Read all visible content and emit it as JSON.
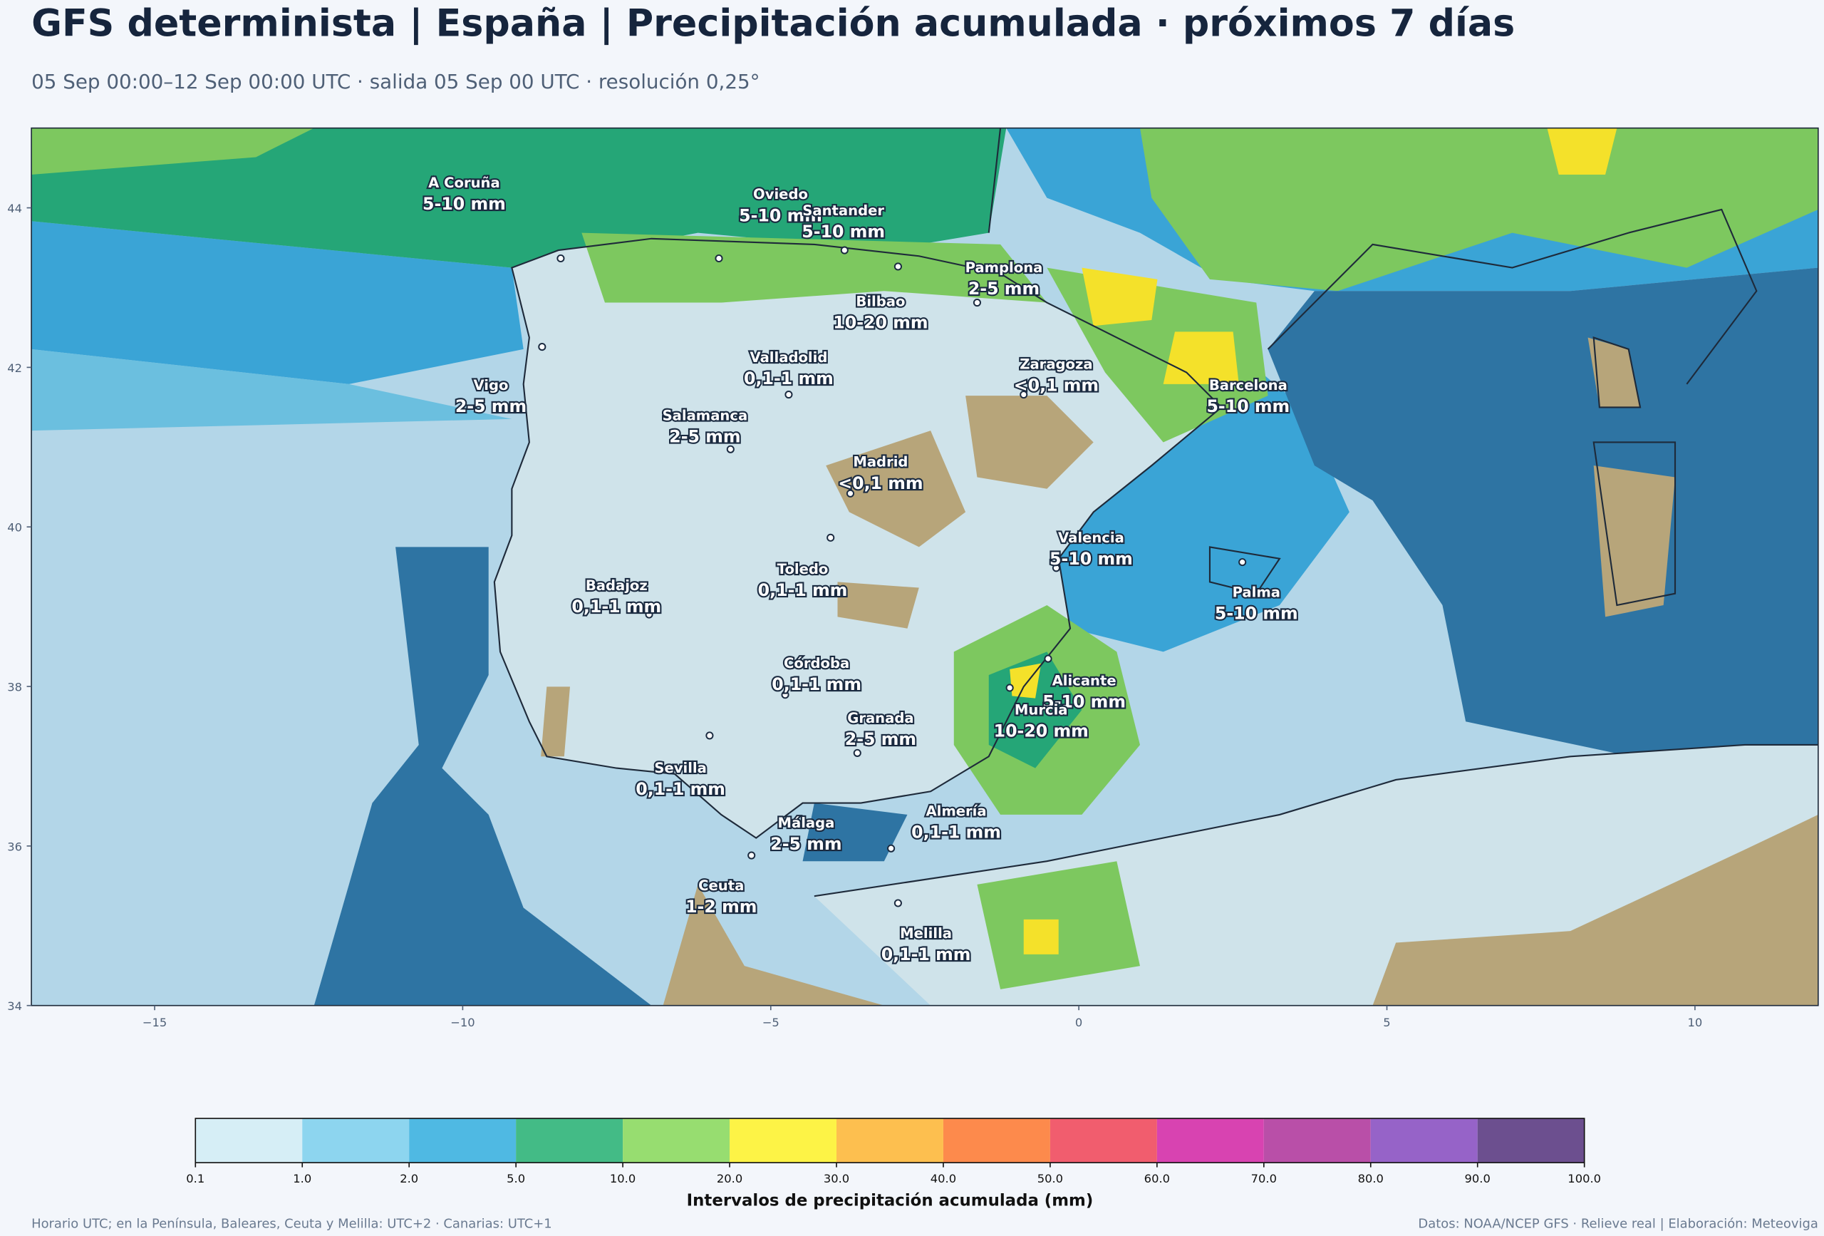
{
  "header": {
    "title": "GFS determinista | España | Precipitación acumulada · próximos 7 días",
    "subtitle": "05 Sep 00:00–12 Sep 00:00 UTC · salida 05 Sep 00 UTC · resolución 0,25°"
  },
  "map": {
    "xlim": [
      -17,
      12
    ],
    "ylim": [
      34,
      45
    ],
    "xticks": [
      {
        "value": -15,
        "label": "−15"
      },
      {
        "value": -10,
        "label": "−10"
      },
      {
        "value": -5,
        "label": "−5"
      },
      0,
      5,
      10
    ],
    "yticks": [
      34,
      36,
      38,
      40,
      42,
      44
    ],
    "cities": [
      {
        "name": "A Coruña",
        "label": "5-10 mm"
      },
      {
        "name": "Oviedo",
        "label": "5-10 mm"
      },
      {
        "name": "Santander",
        "label": "5-10 mm"
      },
      {
        "name": "Pamplona",
        "label": "2-5 mm"
      },
      {
        "name": "Bilbao",
        "label": "10-20 mm"
      },
      {
        "name": "Valladolid",
        "label": "0,1-1 mm"
      },
      {
        "name": "Zaragoza",
        "label": "<0,1 mm"
      },
      {
        "name": "Barcelona",
        "label": "5-10 mm"
      },
      {
        "name": "Vigo",
        "label": "2-5 mm"
      },
      {
        "name": "Salamanca",
        "label": "2-5 mm"
      },
      {
        "name": "Madrid",
        "label": "<0,1 mm"
      },
      {
        "name": "Valencia",
        "label": "5-10 mm"
      },
      {
        "name": "Toledo",
        "label": "0,1-1 mm"
      },
      {
        "name": "Badajoz",
        "label": "0,1-1 mm"
      },
      {
        "name": "Palma",
        "label": "5-10 mm"
      },
      {
        "name": "Córdoba",
        "label": "0,1-1 mm"
      },
      {
        "name": "Alicante",
        "label": "5-10 mm"
      },
      {
        "name": "Murcia",
        "label": "10-20 mm"
      },
      {
        "name": "Granada",
        "label": "2-5 mm"
      },
      {
        "name": "Sevilla",
        "label": "0,1-1 mm"
      },
      {
        "name": "Almería",
        "label": "0,1-1 mm"
      },
      {
        "name": "Málaga",
        "label": "2-5 mm"
      },
      {
        "name": "Ceuta",
        "label": "1-2 mm"
      },
      {
        "name": "Melilla",
        "label": "0,1-1 mm"
      }
    ]
  },
  "colorbar": {
    "title": "Intervalos de precipitación acumulada (mm)",
    "bounds": [
      0.1,
      {
        "value": 1,
        "label": "1.0"
      },
      {
        "value": 2,
        "label": "2.0"
      },
      {
        "value": 5,
        "label": "5.0"
      },
      {
        "value": 10,
        "label": "10.0"
      },
      {
        "value": 20,
        "label": "20.0"
      },
      {
        "value": 30,
        "label": "30.0"
      },
      {
        "value": 40,
        "label": "40.0"
      },
      {
        "value": 50,
        "label": "50.0"
      },
      {
        "value": 60,
        "label": "60.0"
      },
      {
        "value": 70,
        "label": "70.0"
      },
      {
        "value": 80,
        "label": "80.0"
      },
      {
        "value": 90,
        "label": "90.0"
      },
      {
        "value": 100,
        "label": "100.0"
      }
    ],
    "colors": [
      "#d6eef6",
      "#8dd5ef",
      "#4fb9e3",
      "#43bb86",
      "#97dd70",
      "#fdf346",
      "#fdbf4f",
      "#fd8a4c",
      "#f15d6e",
      "#d843b1",
      "#b94fa8",
      "#9663c8",
      "#6c4f8f"
    ]
  },
  "footer": {
    "left": "Horario UTC; en la Península, Baleares, Ceuta y Melilla: UTC+2 · Canarias: UTC+1",
    "right": "Datos: NOAA/NCEP GFS · Relieve real | Elaboración: Meteoviga"
  }
}
